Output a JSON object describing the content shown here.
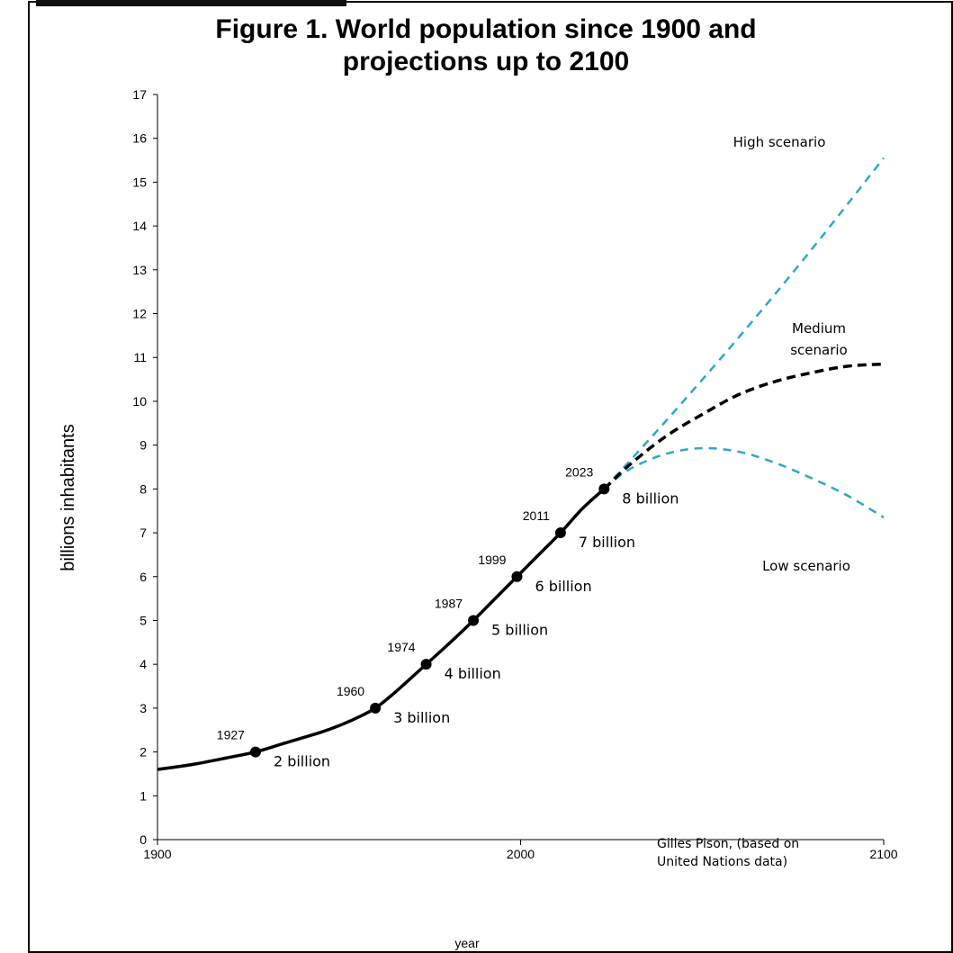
{
  "chart_data": {
    "type": "line",
    "title_lines": [
      "Figure 1. World population since 1900 and",
      "projections up to 2100"
    ],
    "xlabel": "year",
    "ylabel": "billions inhabitants",
    "xlim": [
      1900,
      2100
    ],
    "ylim": [
      0,
      17
    ],
    "x_ticks": [
      1900,
      2000,
      2100
    ],
    "y_ticks": [
      0,
      1,
      2,
      3,
      4,
      5,
      6,
      7,
      8,
      9,
      10,
      11,
      12,
      13,
      14,
      15,
      16,
      17
    ],
    "grid": false,
    "series": [
      {
        "style": "solid",
        "color": "#000000",
        "points": [
          [
            1900,
            1.6
          ],
          [
            1910,
            1.72
          ],
          [
            1920,
            1.88
          ],
          [
            1927,
            2.0
          ],
          [
            1935,
            2.2
          ],
          [
            1945,
            2.45
          ],
          [
            1950,
            2.6
          ],
          [
            1955,
            2.78
          ],
          [
            1960,
            3.0
          ],
          [
            1965,
            3.33
          ],
          [
            1970,
            3.7
          ],
          [
            1974,
            4.0
          ],
          [
            1980,
            4.45
          ],
          [
            1987,
            5.0
          ],
          [
            1993,
            5.5
          ],
          [
            1999,
            6.0
          ],
          [
            2005,
            6.5
          ],
          [
            2011,
            7.0
          ],
          [
            2017,
            7.55
          ],
          [
            2023,
            8.0
          ]
        ]
      },
      {
        "name": "Medium scenario",
        "name_lines": [
          "Medium",
          "scenario"
        ],
        "style": "dashed",
        "color": "#000000",
        "points": [
          [
            2023,
            8.0
          ],
          [
            2030,
            8.55
          ],
          [
            2040,
            9.2
          ],
          [
            2050,
            9.7
          ],
          [
            2060,
            10.15
          ],
          [
            2070,
            10.45
          ],
          [
            2080,
            10.65
          ],
          [
            2090,
            10.8
          ],
          [
            2100,
            10.85
          ]
        ]
      },
      {
        "name": "High scenario",
        "style": "dashed",
        "color": "#2aa8c9",
        "points": [
          [
            2023,
            8.0
          ],
          [
            2040,
            9.55
          ],
          [
            2060,
            11.45
          ],
          [
            2080,
            13.45
          ],
          [
            2100,
            15.55
          ]
        ]
      },
      {
        "name": "Low scenario",
        "style": "dashed",
        "color": "#2aa8c9",
        "points": [
          [
            2023,
            8.0
          ],
          [
            2030,
            8.45
          ],
          [
            2040,
            8.8
          ],
          [
            2050,
            8.93
          ],
          [
            2060,
            8.85
          ],
          [
            2070,
            8.6
          ],
          [
            2080,
            8.25
          ],
          [
            2090,
            7.85
          ],
          [
            2100,
            7.35
          ]
        ]
      }
    ],
    "milestones": [
      {
        "year": 1927,
        "value": 2,
        "year_label": "1927",
        "value_label": "2  billion"
      },
      {
        "year": 1960,
        "value": 3,
        "year_label": "1960",
        "value_label": "3  billion"
      },
      {
        "year": 1974,
        "value": 4,
        "year_label": "1974",
        "value_label": "4  billion"
      },
      {
        "year": 1987,
        "value": 5,
        "year_label": "1987",
        "value_label": "5  billion"
      },
      {
        "year": 1999,
        "value": 6,
        "year_label": "1999",
        "value_label": "6  billion"
      },
      {
        "year": 2011,
        "value": 7,
        "year_label": "2011",
        "value_label": "7  billion"
      },
      {
        "year": 2023,
        "value": 8,
        "year_label": "2023",
        "value_label": "8  billion"
      }
    ],
    "source_lines": [
      "Gilles Pison, (based on",
      "United Nations data)"
    ]
  }
}
